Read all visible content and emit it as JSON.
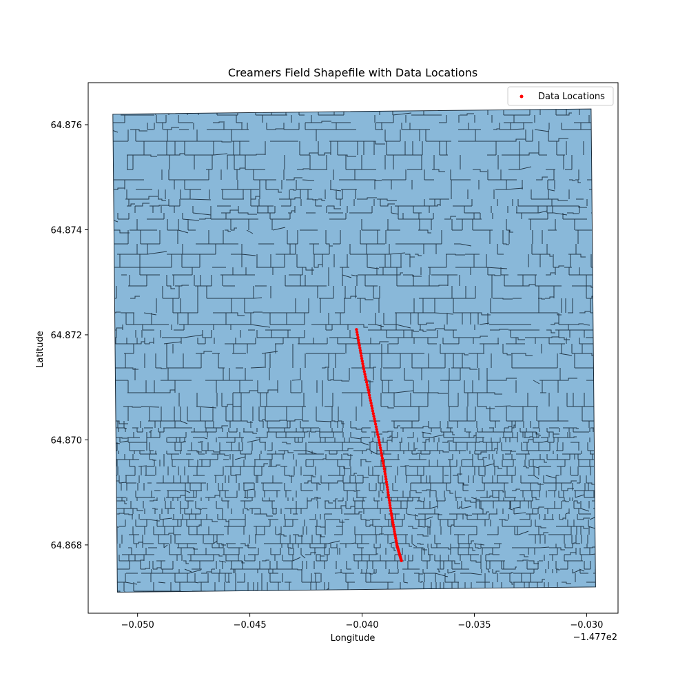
{
  "chart_data": {
    "type": "scatter",
    "title": "Creamers Field Shapefile with Data Locations",
    "xlabel": "Longitude",
    "ylabel": "Latitude",
    "x_offset_label": "−1.477e2",
    "xlim": [
      -0.0522,
      -0.0286
    ],
    "ylim": [
      64.8667,
      64.8768
    ],
    "x_ticks": [
      -0.05,
      -0.045,
      -0.04,
      -0.035,
      -0.03
    ],
    "x_tick_labels": [
      "−0.050",
      "−0.045",
      "−0.040",
      "−0.035",
      "−0.030"
    ],
    "y_ticks": [
      64.868,
      64.87,
      64.872,
      64.874,
      64.876
    ],
    "y_tick_labels": [
      "64.868",
      "64.870",
      "64.872",
      "64.874",
      "64.876"
    ],
    "grid": false,
    "legend_position": "top-right",
    "polygon": {
      "label": "",
      "fill_color": "#89b8d9",
      "edge_color": "#1a2a38",
      "corners": [
        {
          "x": -0.0511,
          "y": 64.8762
        },
        {
          "x": -0.0298,
          "y": 64.8763
        },
        {
          "x": -0.0296,
          "y": 64.8672
        },
        {
          "x": -0.0509,
          "y": 64.8671
        }
      ]
    },
    "series": [
      {
        "name": "Data Locations",
        "color": "#ff0000",
        "marker": "point",
        "x": [
          -0.04025,
          -0.03995,
          -0.0396,
          -0.03925,
          -0.03895,
          -0.0387,
          -0.03845,
          -0.03825
        ],
        "y": [
          64.8721,
          64.8714,
          64.8707,
          64.87,
          64.8693,
          64.8686,
          64.868,
          64.8677
        ]
      }
    ]
  }
}
